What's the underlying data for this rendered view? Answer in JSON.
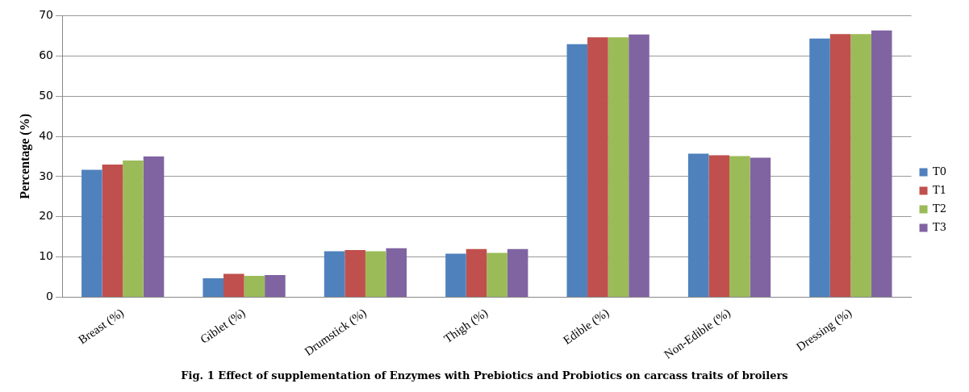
{
  "chart_data": {
    "type": "bar",
    "title": "Fig. 1 Effect of supplementation of Enzymes with Prebiotics and Probiotics on carcass traits of broilers",
    "ylabel": "Percentage (%)",
    "categories": [
      "Breast (%)",
      "Giblet (%)",
      "Drumstick (%)",
      "Thigh (%)",
      "Edible (%)",
      "Non-Edible (%)",
      "Dressing (%)"
    ],
    "series": [
      {
        "name": "T0",
        "color": "#4f81bd",
        "values": [
          31.7,
          4.7,
          11.4,
          10.8,
          62.9,
          35.7,
          64.3
        ]
      },
      {
        "name": "T1",
        "color": "#c0504d",
        "values": [
          33,
          5.8,
          11.7,
          12,
          64.6,
          35.3,
          65.4
        ]
      },
      {
        "name": "T2",
        "color": "#9bbb59",
        "values": [
          34,
          5.3,
          11.4,
          11,
          64.6,
          35.1,
          65.4
        ]
      },
      {
        "name": "T3",
        "color": "#8064a2",
        "values": [
          35,
          5.5,
          12.2,
          12,
          65.3,
          34.7,
          66.3
        ]
      }
    ],
    "ylim": [
      0,
      70
    ],
    "yticks": [
      0,
      10,
      20,
      30,
      40,
      50,
      60,
      70
    ],
    "grid": "y",
    "legend": "right"
  }
}
